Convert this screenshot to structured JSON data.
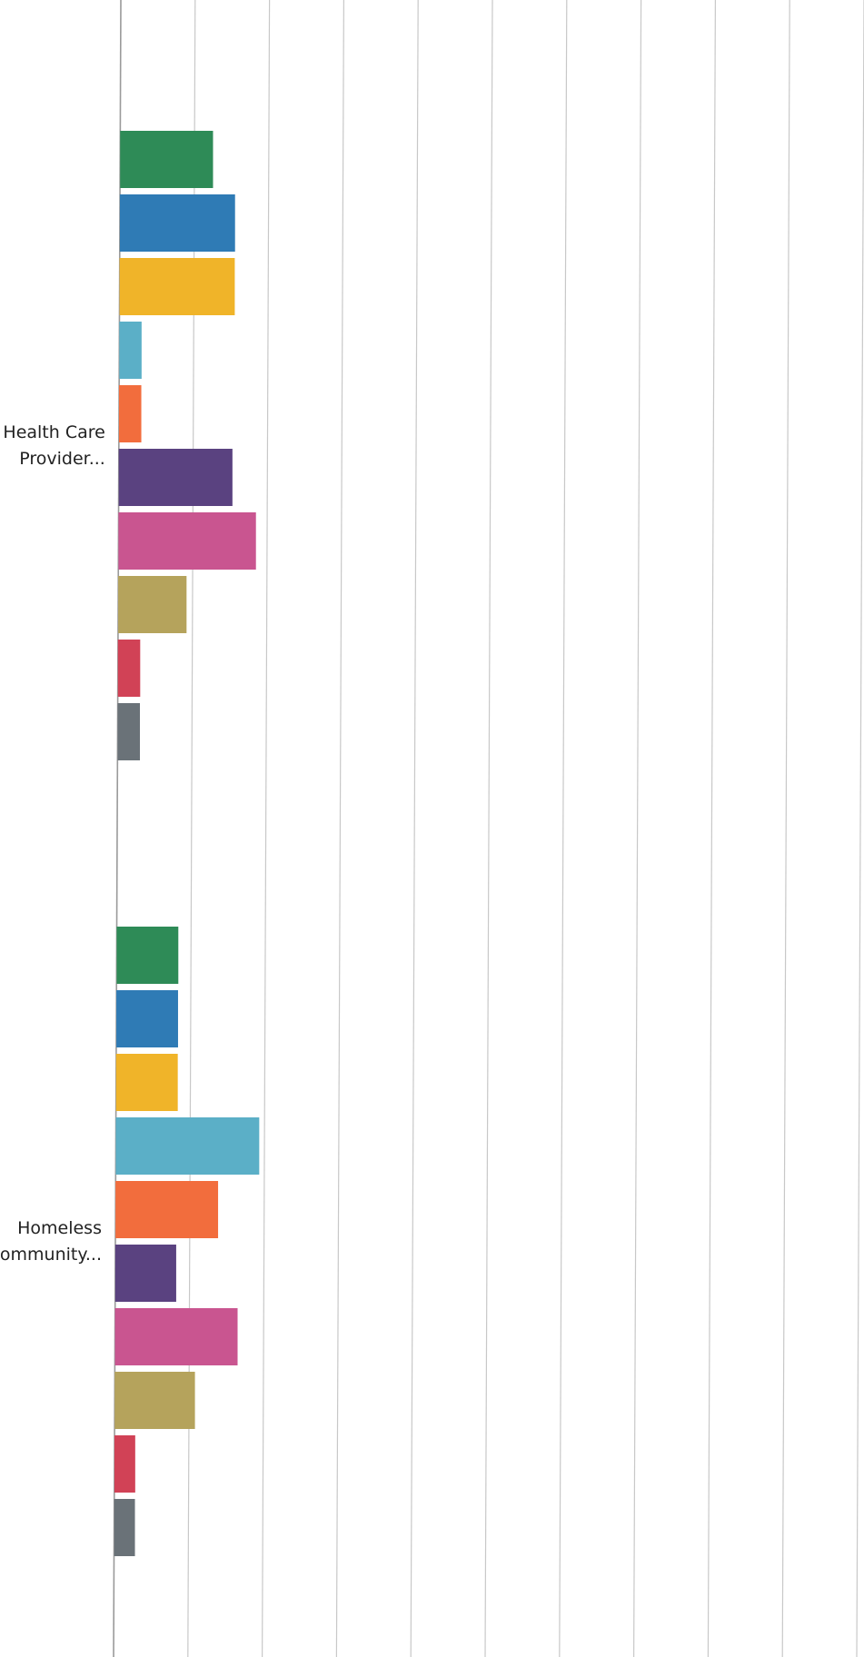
{
  "chart_data": {
    "type": "bar",
    "orientation": "horizontal",
    "grid": true,
    "xlim": [
      0,
      100
    ],
    "x_tick_step": 10,
    "categories": [
      {
        "lines": [
          "Health Care",
          "Provider..."
        ]
      },
      {
        "lines": [
          "Homeless",
          "Community..."
        ]
      }
    ],
    "series": [
      {
        "color": "#2e8b57",
        "values": [
          12.5,
          8.3
        ]
      },
      {
        "color": "#2f7bb5",
        "values": [
          15.5,
          8.3
        ]
      },
      {
        "color": "#f0b429",
        "values": [
          15.5,
          8.3
        ]
      },
      {
        "color": "#5bafc7",
        "values": [
          3.0,
          19.3
        ]
      },
      {
        "color": "#f26d3d",
        "values": [
          3.0,
          13.8
        ]
      },
      {
        "color": "#5a4280",
        "values": [
          15.3,
          8.2
        ]
      },
      {
        "color": "#c95590",
        "values": [
          18.5,
          16.5
        ]
      },
      {
        "color": "#b5a35c",
        "values": [
          9.2,
          10.8
        ]
      },
      {
        "color": "#d14256",
        "values": [
          3.0,
          2.8
        ]
      },
      {
        "color": "#6a7278",
        "values": [
          3.0,
          2.8
        ]
      }
    ]
  }
}
